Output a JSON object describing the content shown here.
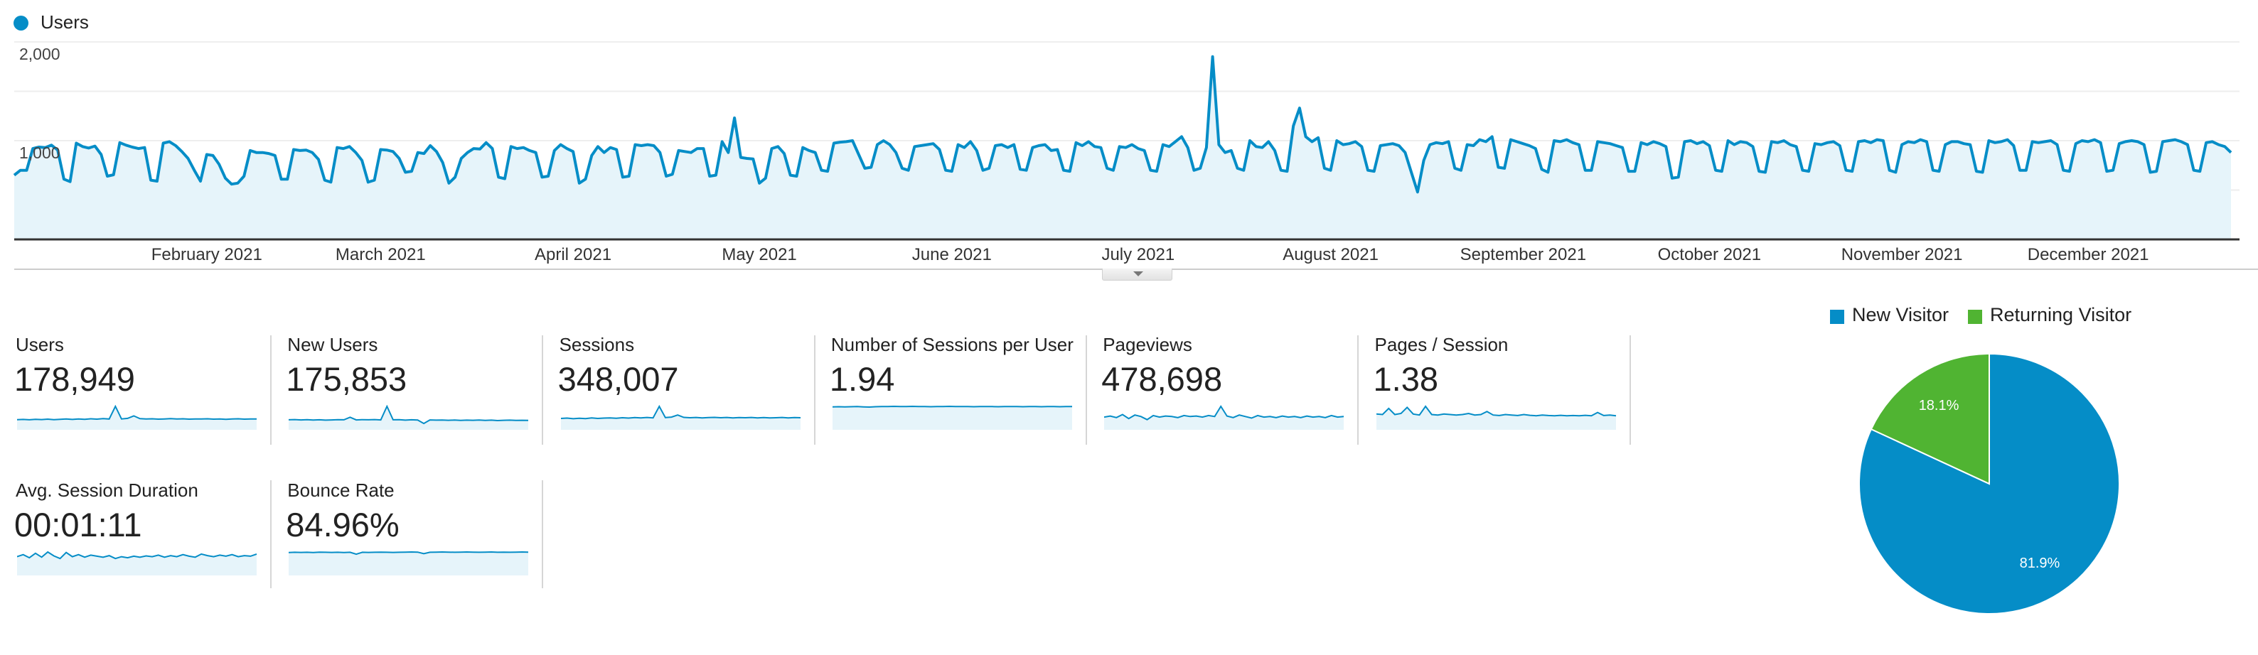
{
  "colors": {
    "primary": "#058dc7",
    "fill": "#e6f4fa",
    "secondary": "#50b432",
    "grid": "#eeeeee",
    "axis": "#333333"
  },
  "chart_data": [
    {
      "type": "area",
      "legend": "Users",
      "ylim": [
        0,
        2000
      ],
      "yticks": [
        "1,000",
        "2,000"
      ],
      "ytick_values": [
        1000,
        2000
      ],
      "grid": true,
      "x_start": "2021-01-01",
      "x_end": "2021-12-31",
      "xticks": [
        {
          "label": "February 2021",
          "date": "2021-02-01"
        },
        {
          "label": "March 2021",
          "date": "2021-03-01"
        },
        {
          "label": "April 2021",
          "date": "2021-04-01"
        },
        {
          "label": "May 2021",
          "date": "2021-05-01"
        },
        {
          "label": "June 2021",
          "date": "2021-06-01"
        },
        {
          "label": "July 2021",
          "date": "2021-07-01"
        },
        {
          "label": "August 2021",
          "date": "2021-08-01"
        },
        {
          "label": "September 2021",
          "date": "2021-09-01"
        },
        {
          "label": "October 2021",
          "date": "2021-10-01"
        },
        {
          "label": "November 2021",
          "date": "2021-11-01"
        },
        {
          "label": "December 2021",
          "date": "2021-12-01"
        }
      ],
      "values": [
        650,
        700,
        700,
        920,
        935,
        930,
        955,
        905,
        610,
        585,
        975,
        940,
        925,
        945,
        860,
        640,
        655,
        980,
        955,
        935,
        920,
        930,
        600,
        590,
        975,
        990,
        950,
        890,
        820,
        700,
        590,
        860,
        850,
        760,
        620,
        560,
        570,
        640,
        900,
        880,
        880,
        870,
        850,
        610,
        610,
        910,
        900,
        905,
        880,
        810,
        600,
        580,
        930,
        920,
        940,
        880,
        800,
        580,
        600,
        910,
        905,
        890,
        820,
        680,
        690,
        880,
        870,
        950,
        890,
        780,
        570,
        630,
        820,
        880,
        920,
        915,
        980,
        920,
        630,
        615,
        940,
        920,
        930,
        900,
        880,
        630,
        640,
        900,
        960,
        920,
        890,
        570,
        610,
        850,
        940,
        880,
        930,
        910,
        630,
        640,
        960,
        950,
        960,
        950,
        880,
        640,
        660,
        900,
        890,
        880,
        920,
        920,
        640,
        650,
        990,
        880,
        1230,
        830,
        820,
        815,
        570,
        620,
        920,
        940,
        870,
        650,
        640,
        930,
        900,
        880,
        700,
        690,
        975,
        985,
        990,
        1000,
        860,
        720,
        730,
        960,
        1000,
        960,
        880,
        720,
        700,
        940,
        950,
        960,
        970,
        910,
        700,
        690,
        960,
        930,
        990,
        900,
        700,
        720,
        950,
        960,
        930,
        960,
        710,
        700,
        930,
        950,
        960,
        900,
        910,
        700,
        690,
        980,
        950,
        990,
        940,
        930,
        720,
        700,
        940,
        930,
        960,
        920,
        900,
        700,
        690,
        960,
        940,
        990,
        1040,
        930,
        700,
        720,
        930,
        1850,
        960,
        880,
        900,
        720,
        700,
        1000,
        940,
        930,
        990,
        900,
        700,
        690,
        1150,
        1330,
        1040,
        990,
        1030,
        720,
        700,
        1000,
        960,
        970,
        990,
        940,
        700,
        690,
        950,
        960,
        970,
        950,
        880,
        680,
        480,
        800,
        960,
        980,
        970,
        990,
        720,
        700,
        960,
        950,
        1010,
        990,
        1040,
        730,
        720,
        1010,
        990,
        970,
        950,
        920,
        710,
        680,
        1000,
        990,
        1010,
        980,
        960,
        700,
        700,
        990,
        980,
        970,
        950,
        930,
        690,
        690,
        980,
        960,
        990,
        970,
        940,
        620,
        630,
        990,
        1000,
        970,
        990,
        950,
        700,
        690,
        1000,
        960,
        990,
        980,
        940,
        690,
        680,
        990,
        980,
        1000,
        960,
        940,
        700,
        690,
        970,
        960,
        980,
        990,
        950,
        700,
        690,
        990,
        1000,
        980,
        1010,
        1000,
        700,
        680,
        960,
        990,
        980,
        1010,
        990,
        700,
        690,
        960,
        990,
        990,
        970,
        960,
        690,
        680,
        1000,
        980,
        990,
        1010,
        950,
        700,
        700,
        990,
        980,
        990,
        1000,
        960,
        700,
        690,
        970,
        1000,
        990,
        1010,
        980,
        690,
        700,
        970,
        990,
        1000,
        990,
        960,
        680,
        690,
        990,
        1000,
        1010,
        990,
        960,
        700,
        690,
        980,
        990,
        960,
        940,
        880
      ]
    },
    {
      "type": "pie",
      "legend": [
        "New Visitor",
        "Returning Visitor"
      ],
      "values": [
        81.9,
        18.1
      ],
      "labels": [
        "81.9%",
        "18.1%"
      ],
      "legend_placement": "top"
    }
  ],
  "metrics": [
    {
      "label": "Users",
      "value": "178,949",
      "sparkline": [
        800,
        820,
        790,
        830,
        810,
        840,
        800,
        830,
        850,
        820,
        860,
        830,
        870,
        840,
        880,
        850,
        1850,
        860,
        900,
        1100,
        880,
        850,
        870,
        840,
        860,
        880,
        850,
        870,
        840,
        860,
        850,
        870,
        840,
        860,
        830,
        850,
        870,
        840,
        860,
        850
      ]
    },
    {
      "label": "New Users",
      "value": "175,853",
      "sparkline": [
        790,
        810,
        780,
        800,
        770,
        790,
        760,
        780,
        800,
        790,
        990,
        780,
        800,
        790,
        810,
        780,
        1850,
        790,
        800,
        760,
        790,
        770,
        500,
        780,
        760,
        770,
        750,
        770,
        740,
        760,
        750,
        770,
        740,
        760,
        730,
        750,
        760,
        740,
        750,
        740
      ]
    },
    {
      "label": "Sessions",
      "value": "348,007",
      "sparkline": [
        920,
        950,
        900,
        940,
        910,
        960,
        920,
        950,
        970,
        940,
        980,
        950,
        990,
        960,
        1000,
        970,
        1900,
        990,
        1030,
        1200,
        1010,
        980,
        1000,
        970,
        990,
        1010,
        980,
        1000,
        970,
        990,
        980,
        1000,
        970,
        990,
        960,
        980,
        1000,
        970,
        990,
        980
      ]
    },
    {
      "label": "Number of Sessions per User",
      "value": "1.94",
      "sparkline": [
        1.93,
        1.94,
        1.92,
        1.94,
        1.95,
        1.93,
        1.91,
        1.94,
        1.96,
        1.95,
        1.97,
        1.96,
        1.95,
        1.97,
        1.96,
        1.95,
        1.94,
        1.96,
        1.95,
        1.97,
        1.96,
        1.95,
        1.96,
        1.94,
        1.95,
        1.96,
        1.95,
        1.94,
        1.95,
        1.96,
        1.95,
        1.94,
        1.95,
        1.96,
        1.94,
        1.95,
        1.96,
        1.94,
        1.95,
        1.96
      ]
    },
    {
      "label": "Pageviews",
      "value": "478,698",
      "sparkline": [
        1250,
        1350,
        1200,
        1500,
        1100,
        1450,
        1300,
        1000,
        1400,
        1250,
        1350,
        1300,
        1200,
        1400,
        1300,
        1350,
        1250,
        1400,
        1300,
        2300,
        1350,
        1200,
        1450,
        1300,
        1150,
        1400,
        1250,
        1300,
        1200,
        1350,
        1250,
        1300,
        1200,
        1350,
        1250,
        1300,
        1200,
        1400,
        1250,
        1300
      ]
    },
    {
      "label": "Pages / Session",
      "value": "1.38",
      "sparkline": [
        1.55,
        1.5,
        2.1,
        1.5,
        1.6,
        2.2,
        1.55,
        1.45,
        2.3,
        1.5,
        1.45,
        1.55,
        1.5,
        1.45,
        1.5,
        1.6,
        1.45,
        1.5,
        1.8,
        1.45,
        1.4,
        1.5,
        1.45,
        1.4,
        1.5,
        1.42,
        1.38,
        1.45,
        1.4,
        1.38,
        1.42,
        1.38,
        1.4,
        1.38,
        1.42,
        1.38,
        1.7,
        1.4,
        1.45,
        1.38
      ]
    },
    {
      "label": "Avg. Session Duration",
      "value": "00:01:11",
      "sparkline": [
        72,
        80,
        68,
        85,
        70,
        90,
        75,
        65,
        88,
        72,
        80,
        70,
        78,
        74,
        70,
        76,
        65,
        72,
        68,
        74,
        70,
        75,
        72,
        78,
        70,
        76,
        72,
        80,
        74,
        70,
        82,
        76,
        72,
        78,
        74,
        80,
        72,
        76,
        74,
        82
      ]
    },
    {
      "label": "Bounce Rate",
      "value": "84.96%",
      "sparkline": [
        84,
        85,
        84.5,
        85,
        84,
        85.5,
        85,
        84.5,
        85,
        84,
        85,
        78,
        85,
        84.5,
        85,
        85.5,
        85,
        84.5,
        85,
        85.5,
        86,
        85.5,
        80,
        85,
        85.5,
        86,
        85.5,
        85,
        85.5,
        86,
        85.5,
        85,
        85.5,
        86,
        85,
        85.5,
        85,
        85.5,
        86,
        85.5
      ]
    }
  ]
}
